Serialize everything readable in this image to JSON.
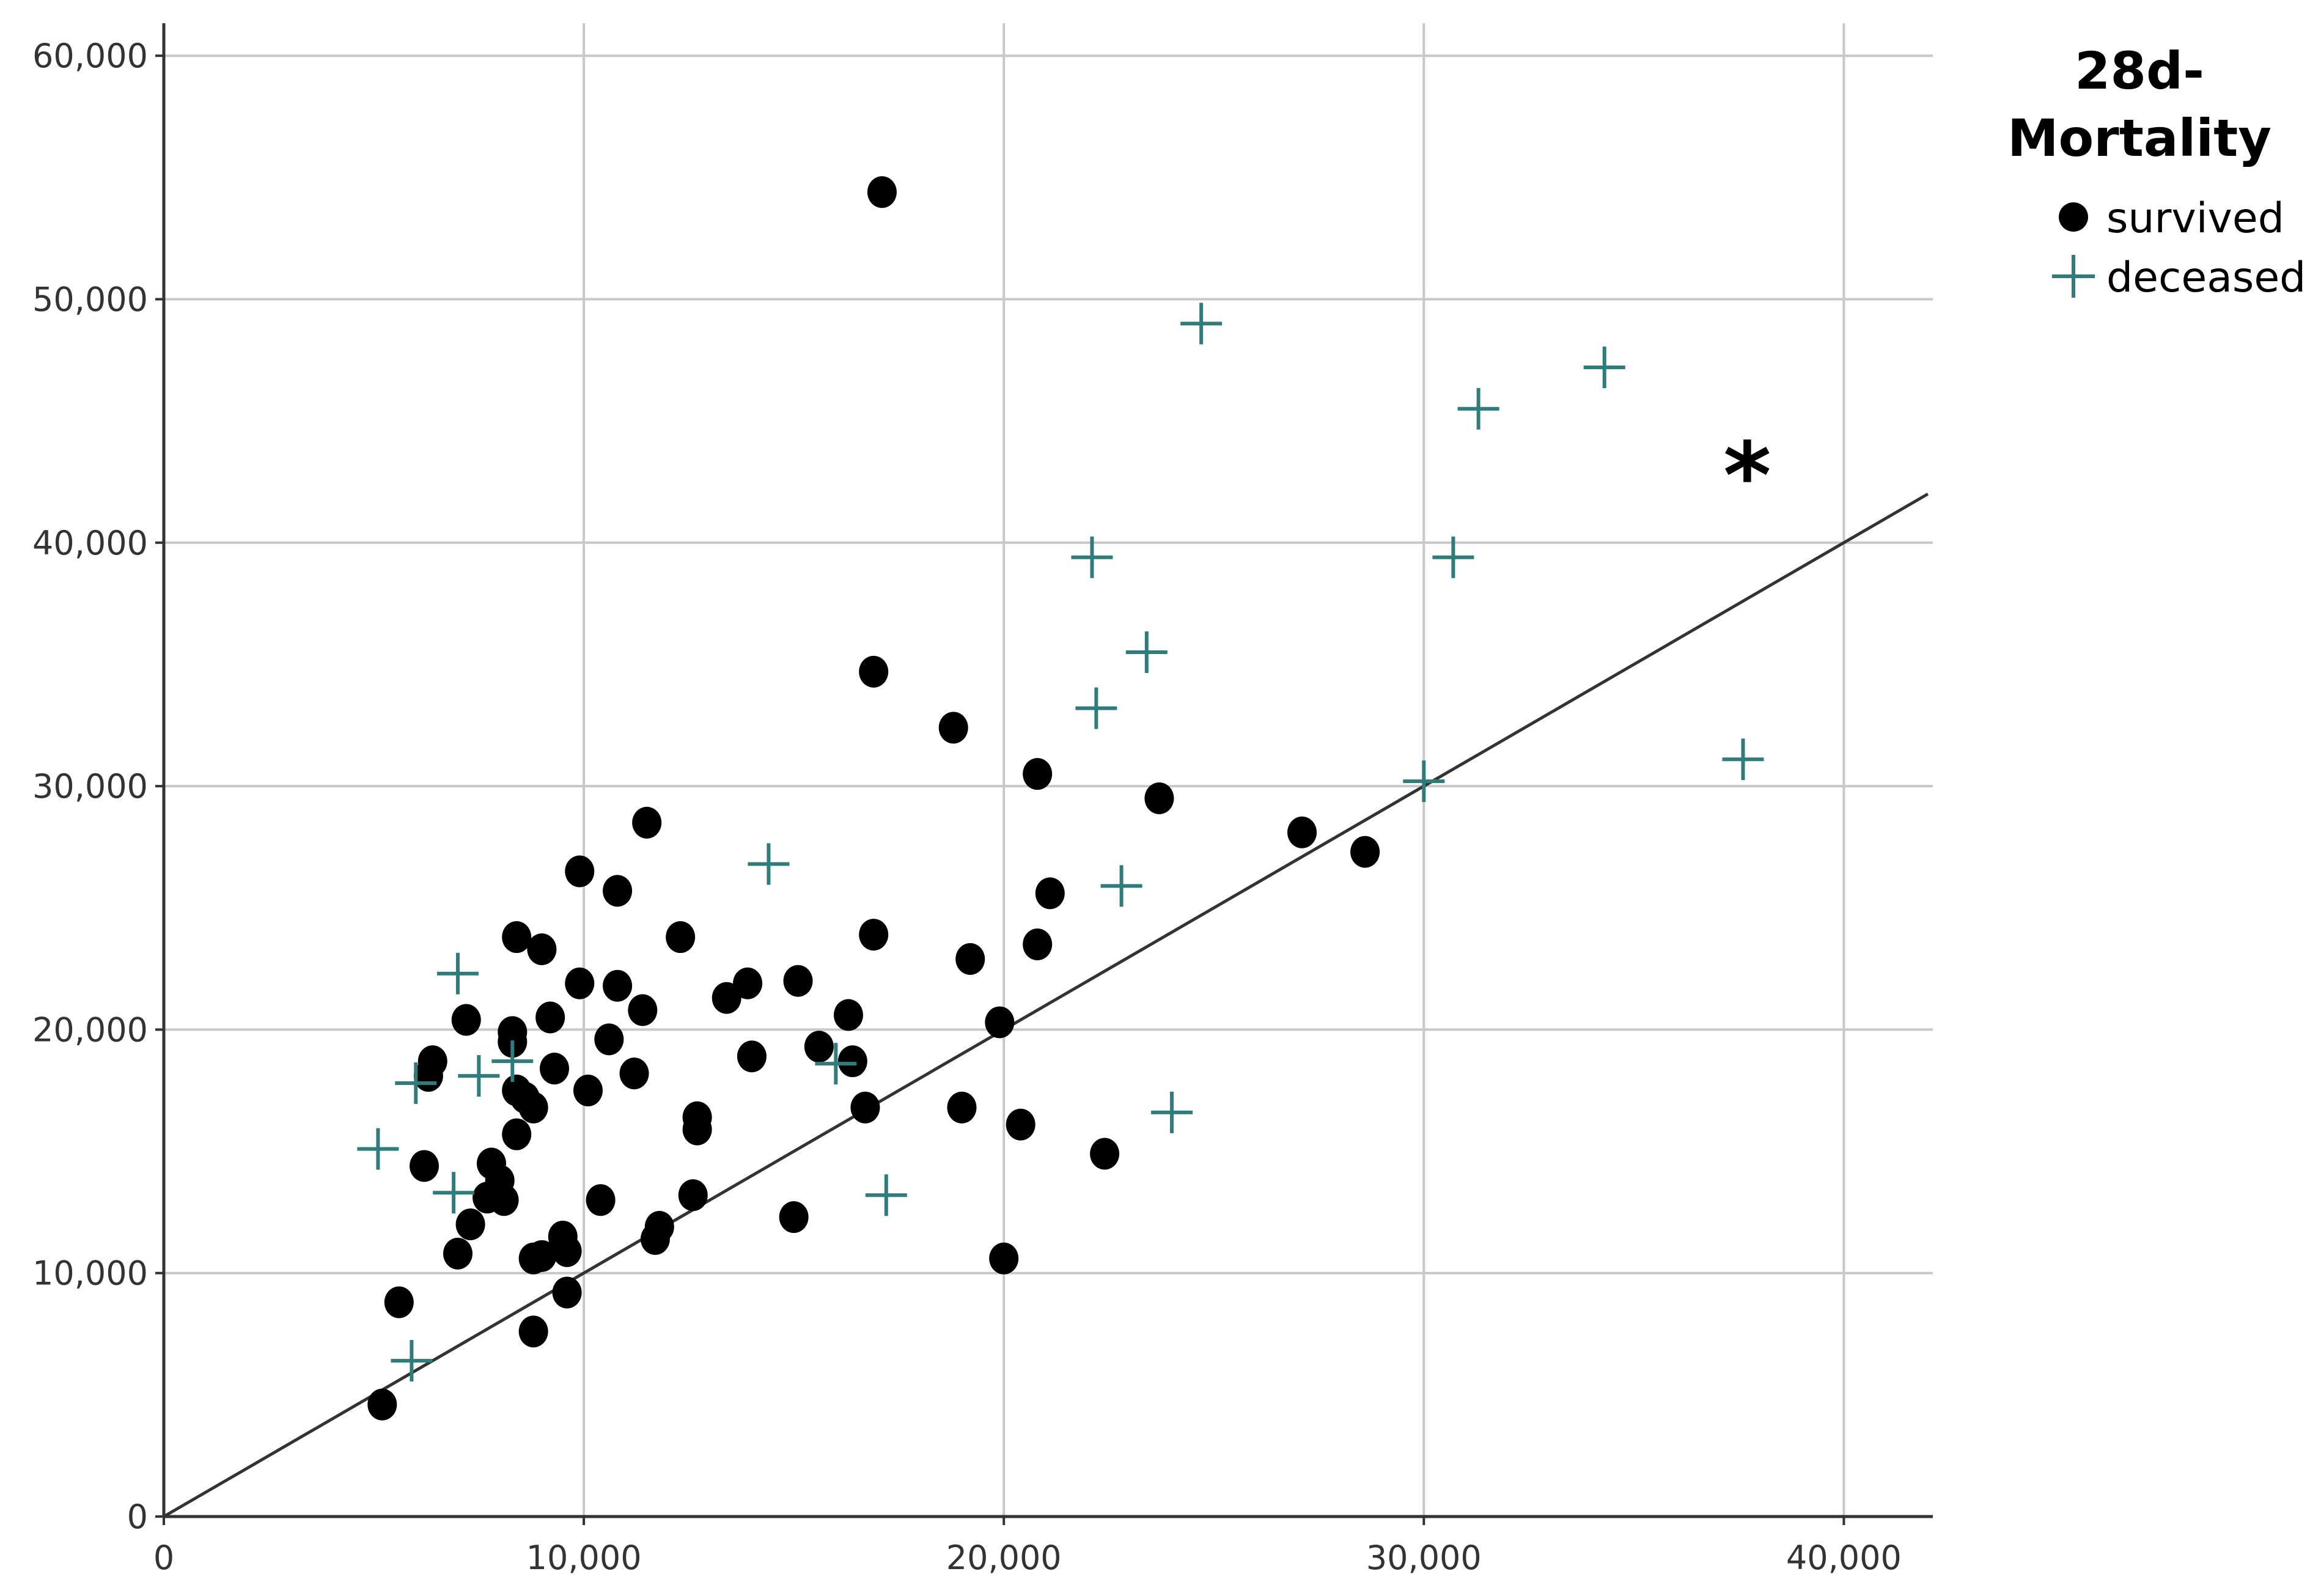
{
  "chart_data": {
    "type": "scatter",
    "title": "",
    "xlabel": "",
    "ylabel": "",
    "xlim": [
      0,
      42000
    ],
    "ylim": [
      0,
      60000
    ],
    "x_ticks": [
      0,
      10000,
      20000,
      30000,
      40000
    ],
    "y_ticks": [
      0,
      10000,
      20000,
      30000,
      40000,
      50000,
      60000
    ],
    "x_tick_labels": [
      "0",
      "10,000",
      "20,000",
      "30,000",
      "40,000"
    ],
    "y_tick_labels": [
      "0",
      "10,000",
      "20,000",
      "30,000",
      "40,000",
      "50,000",
      "60,000"
    ],
    "grid": true,
    "colors": {
      "survived": "#000000",
      "deceased": "#2e7d7a",
      "grid": "#c8c8c8",
      "axis": "#333333",
      "reference_line": "#333333"
    },
    "legend": {
      "title_line1": "28d-",
      "title_line2": "Mortality",
      "placement": "top-right, outside plot",
      "entries": [
        {
          "label": "survived",
          "marker": "filled-circle"
        },
        {
          "label": "deceased",
          "marker": "plus"
        }
      ]
    },
    "reference_line": {
      "type": "identity",
      "slope": 1,
      "intercept": 0
    },
    "annotation": {
      "text": "*",
      "x": 37700,
      "y": 43200
    },
    "series": [
      {
        "name": "survived",
        "marker": "filled-circle",
        "points": [
          [
            17100,
            54400
          ],
          [
            16900,
            34700
          ],
          [
            18800,
            32400
          ],
          [
            20800,
            30500
          ],
          [
            23700,
            29500
          ],
          [
            27100,
            28100
          ],
          [
            28600,
            27300
          ],
          [
            11500,
            28500
          ],
          [
            9900,
            26500
          ],
          [
            10800,
            25700
          ],
          [
            21100,
            25600
          ],
          [
            8400,
            23800
          ],
          [
            9000,
            23300
          ],
          [
            12300,
            23800
          ],
          [
            16900,
            23900
          ],
          [
            20800,
            23500
          ],
          [
            19200,
            22900
          ],
          [
            9900,
            21900
          ],
          [
            10800,
            21800
          ],
          [
            13900,
            21900
          ],
          [
            15100,
            22000
          ],
          [
            13400,
            21300
          ],
          [
            11400,
            20800
          ],
          [
            16300,
            20600
          ],
          [
            7200,
            20400
          ],
          [
            9200,
            20500
          ],
          [
            19900,
            20300
          ],
          [
            8300,
            19900
          ],
          [
            8300,
            19500
          ],
          [
            10600,
            19600
          ],
          [
            15600,
            19300
          ],
          [
            14000,
            18900
          ],
          [
            16400,
            18700
          ],
          [
            6400,
            18700
          ],
          [
            6300,
            18100
          ],
          [
            9300,
            18400
          ],
          [
            11200,
            18200
          ],
          [
            8400,
            17500
          ],
          [
            10100,
            17500
          ],
          [
            8600,
            17200
          ],
          [
            8800,
            16800
          ],
          [
            16700,
            16800
          ],
          [
            19000,
            16800
          ],
          [
            12700,
            16400
          ],
          [
            12700,
            15900
          ],
          [
            20400,
            16100
          ],
          [
            8400,
            15700
          ],
          [
            22400,
            14900
          ],
          [
            6200,
            14400
          ],
          [
            7800,
            14500
          ],
          [
            8000,
            13800
          ],
          [
            7700,
            13100
          ],
          [
            8100,
            13000
          ],
          [
            12600,
            13200
          ],
          [
            10400,
            13000
          ],
          [
            7300,
            12000
          ],
          [
            15000,
            12300
          ],
          [
            11800,
            11900
          ],
          [
            11700,
            11400
          ],
          [
            9500,
            11500
          ],
          [
            9600,
            10900
          ],
          [
            7000,
            10800
          ],
          [
            8800,
            10600
          ],
          [
            9000,
            10700
          ],
          [
            20000,
            10600
          ],
          [
            5600,
            8800
          ],
          [
            9600,
            9200
          ],
          [
            8800,
            7600
          ],
          [
            5200,
            4600
          ]
        ]
      },
      {
        "name": "deceased",
        "marker": "plus",
        "points": [
          [
            24700,
            49000
          ],
          [
            34300,
            47200
          ],
          [
            31300,
            45500
          ],
          [
            22100,
            39400
          ],
          [
            30700,
            39400
          ],
          [
            23400,
            35500
          ],
          [
            22200,
            33200
          ],
          [
            37600,
            31100
          ],
          [
            30000,
            30200
          ],
          [
            14400,
            26800
          ],
          [
            22800,
            25900
          ],
          [
            7000,
            22300
          ],
          [
            8300,
            18700
          ],
          [
            7500,
            18100
          ],
          [
            6000,
            17800
          ],
          [
            16000,
            18600
          ],
          [
            24000,
            16600
          ],
          [
            5100,
            15100
          ],
          [
            6900,
            13300
          ],
          [
            17200,
            13200
          ],
          [
            5900,
            6400
          ]
        ]
      }
    ]
  }
}
